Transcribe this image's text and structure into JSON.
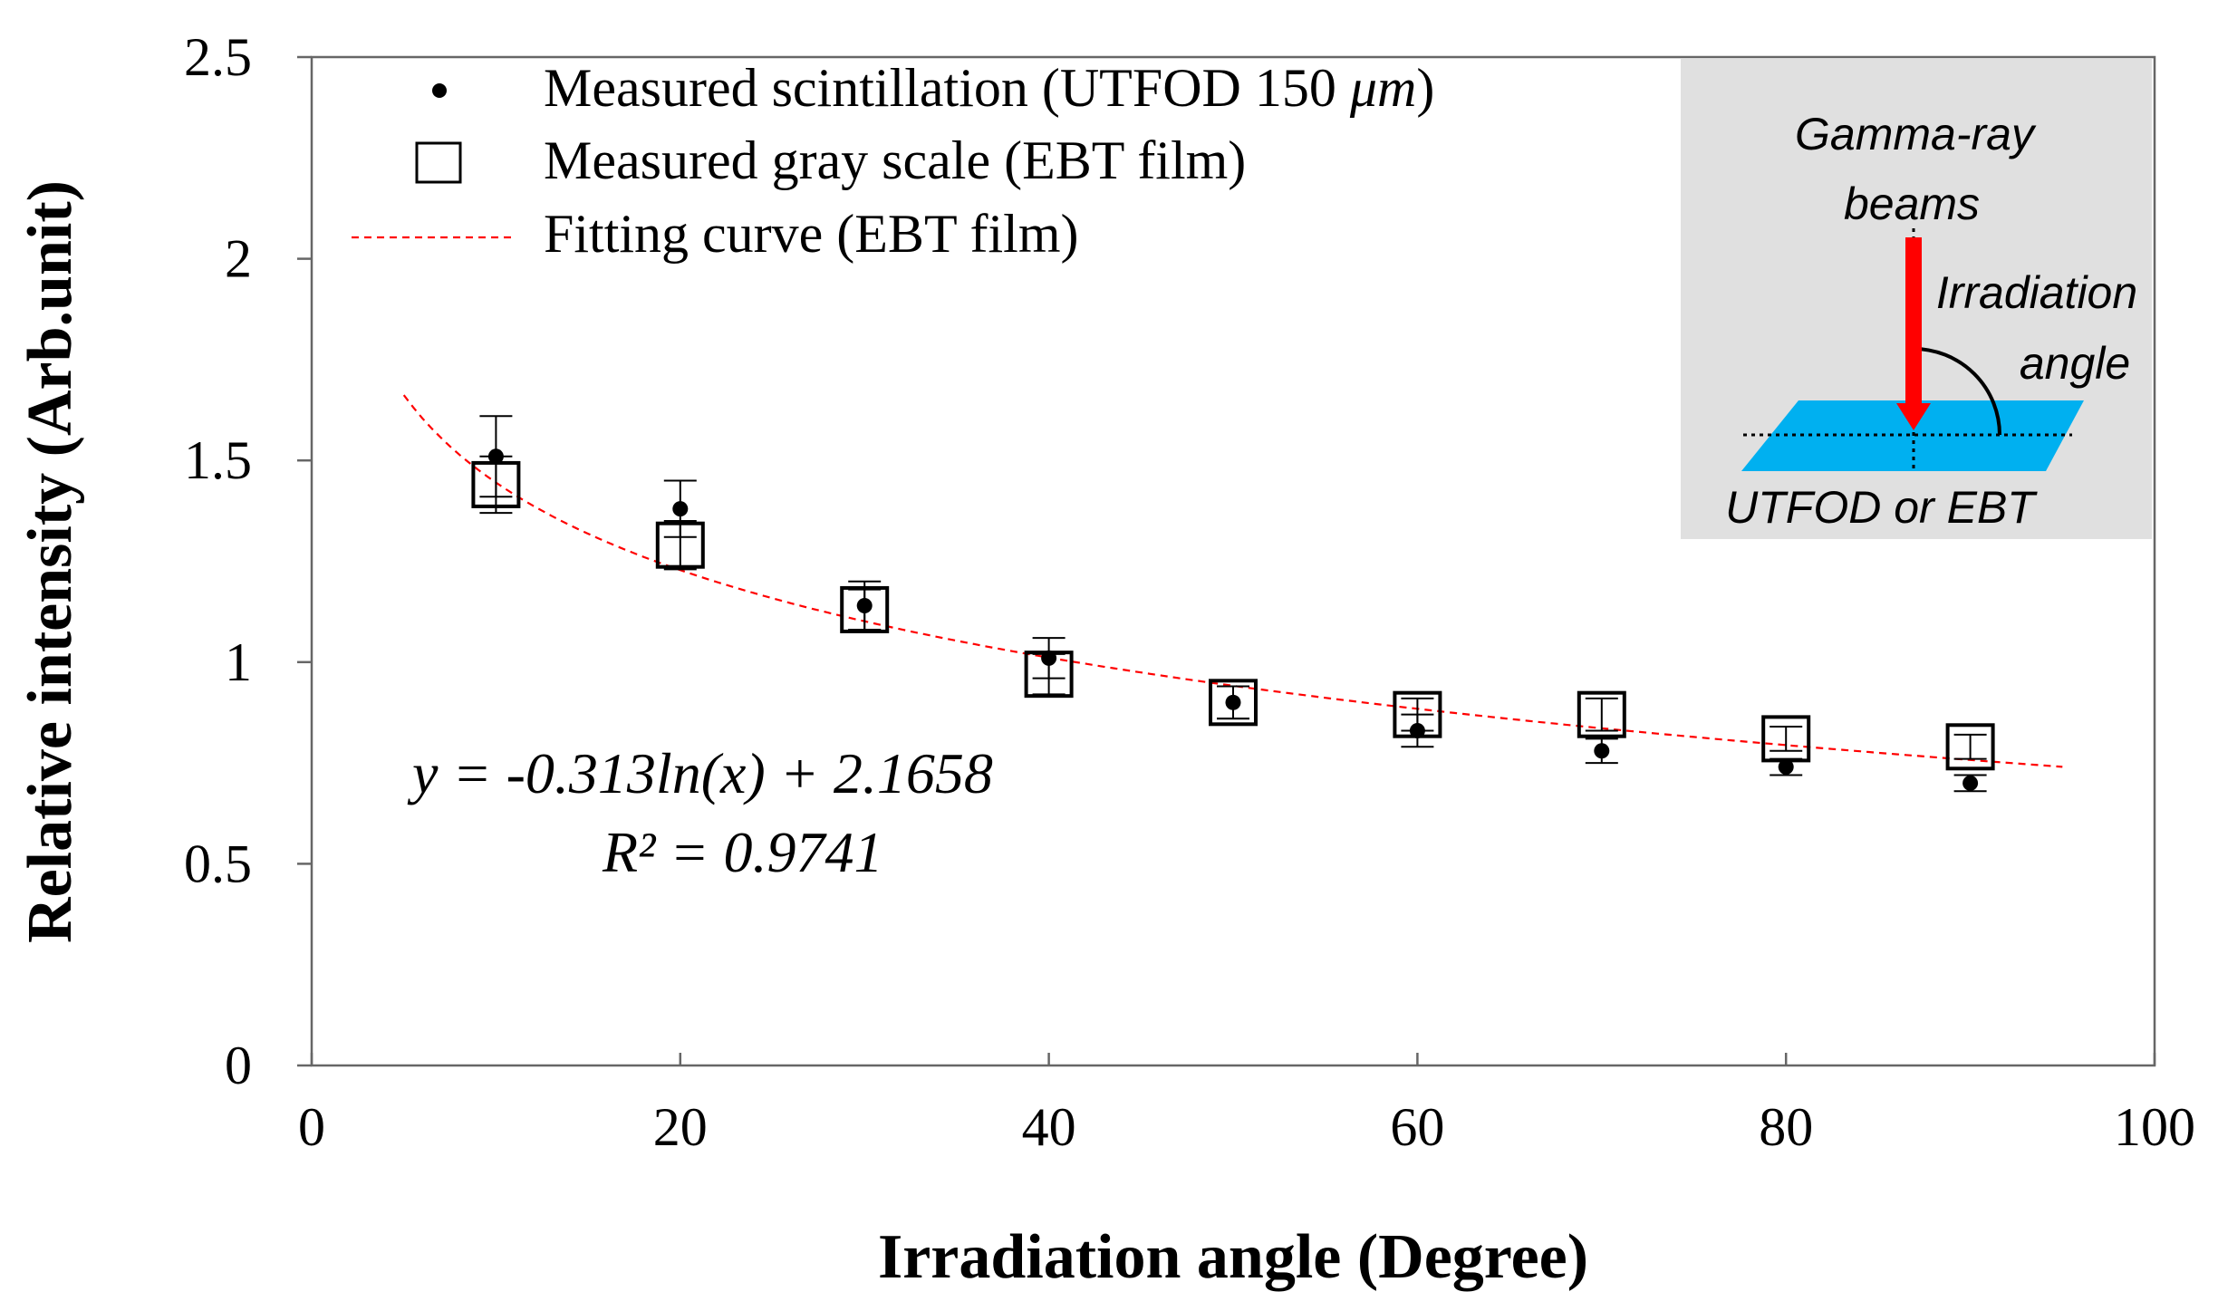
{
  "chart_data": {
    "type": "scatter",
    "title": "",
    "xlabel": "Irradiation angle (Degree)",
    "ylabel": "Relative intensity (Arb.unit)",
    "xlim": [
      0,
      100
    ],
    "ylim": [
      0,
      2.5
    ],
    "x_ticks": [
      0,
      20,
      40,
      60,
      80,
      100
    ],
    "x_tick_labels": [
      "0",
      "20",
      "40",
      "60",
      "80",
      "100"
    ],
    "y_ticks": [
      0,
      0.5,
      1,
      1.5,
      2,
      2.5
    ],
    "y_tick_labels": [
      "0",
      "0.5",
      "1",
      "1.5",
      "2",
      "2.5"
    ],
    "grid": false,
    "legend_position": "top-left",
    "series": [
      {
        "name": "Measured scintillation (UTFOD 150 μm)",
        "legend_text": "Measured scintillation  (UTFOD 150 ",
        "legend_unit": "μm",
        "legend_close": ")",
        "marker": "dot",
        "color": "#000000",
        "x": [
          10,
          20,
          30,
          40,
          50,
          60,
          70,
          80,
          90
        ],
        "y": [
          1.51,
          1.38,
          1.14,
          1.01,
          0.9,
          0.83,
          0.78,
          0.74,
          0.7
        ],
        "error": [
          0.1,
          0.07,
          0.06,
          0.05,
          0.04,
          0.04,
          0.03,
          0.02,
          0.02
        ]
      },
      {
        "name": "Measured gray scale (EBT film)",
        "legend_text": "Measured gray scale (EBT film)",
        "marker": "open-square",
        "color": "#000000",
        "x": [
          10,
          20,
          30,
          40,
          50,
          60,
          70,
          80,
          90
        ],
        "y": [
          1.44,
          1.29,
          1.13,
          0.97,
          0.9,
          0.87,
          0.87,
          0.81,
          0.79
        ],
        "error": [
          0.07,
          0.06,
          0.05,
          0.05,
          0.04,
          0.04,
          0.04,
          0.03,
          0.03
        ]
      },
      {
        "name": "Fitting curve (EBT film)",
        "legend_text": "Fitting curve (EBT film)",
        "marker": "dashed-line",
        "color": "#ff0000",
        "equation": {
          "a": -0.313,
          "b": 2.1658
        },
        "x_range": [
          5,
          95
        ]
      }
    ],
    "annotations": {
      "equation": "y = -0.313ln(x) + 2.1658",
      "r_squared": "R² = 0.9741"
    },
    "inset": {
      "beam_line1": "Gamma-ray",
      "beam_line2": "beams",
      "angle_line1": "Irradiation",
      "angle_line2": "angle",
      "detector": "UTFOD or EBT",
      "background_color": "#e0e0e0",
      "beam_color": "#ff0000",
      "plate_color": "#00b0f0"
    }
  }
}
